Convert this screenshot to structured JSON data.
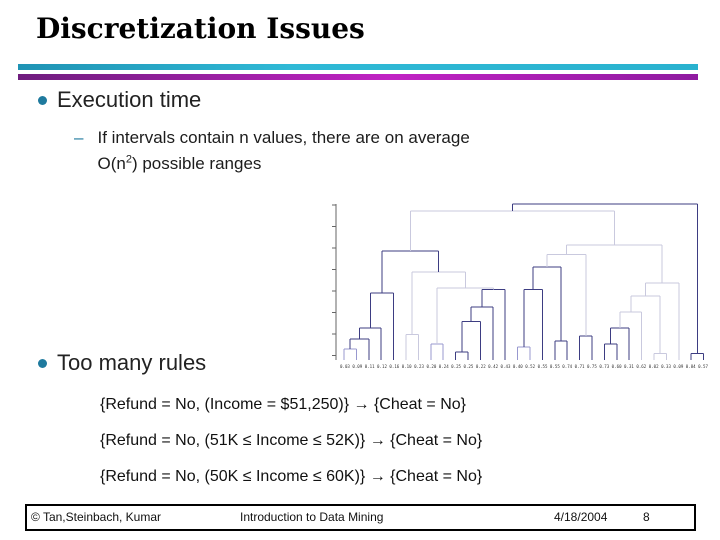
{
  "slide": {
    "title": "Discretization Issues",
    "bullet1": "Execution time",
    "bullet2": "Too many rules",
    "sub_bullet": {
      "dash": "–",
      "line1": "If intervals contain n values, there are on average",
      "line2_prefix": "O(n",
      "line2_sup": "2",
      "line2_suffix": ") possible ranges"
    },
    "rules": [
      "{Refund = No, (Income = $51,250)} → {Cheat = No}",
      "{Refund = No, (51K ≤ Income ≤ 52K)} → {Cheat = No}",
      "{Refund = No, (50K ≤ Income ≤ 60K)} → {Cheat = No}"
    ]
  },
  "footer": {
    "copyright": "© Tan,Steinbach, Kumar",
    "center": "Introduction to Data Mining",
    "date": "4/18/2004",
    "page": "8"
  },
  "colors": {
    "accent_teal": "#29b2cf",
    "accent_magenta": "#b21bb2",
    "bullet_dot": "#1f7a9e",
    "dendro_dark": "#3d3d82",
    "dendro_light": "#c9c9de",
    "dendro_mid": "#9898cf",
    "axis": "#666666"
  },
  "chart_data": {
    "type": "dendrogram",
    "title": "",
    "xlabel": "",
    "ylabel": "",
    "leaf_labels": "0.03 0.09 0.11 0.12 0.16 0.10 0.23 0.20 0.24 0.25 0.25 0.22 0.42 0.43 0.40 0.52 0.55 0.55 0.74 0.71 0.75 0.73 0.60 0.31 0.62 0.02 0.33 0.09 0.84 0.57",
    "colors": {
      "d": "#3d3d82",
      "l": "#c9c9de",
      "m": "#9898cf"
    },
    "tree": {
      "h": 0.975,
      "col": "d",
      "c": [
        {
          "h": 0.93,
          "col": "l",
          "c": [
            {
              "h": 0.68,
              "col": "d",
              "c": [
                {
                  "h": 0.42,
                  "col": "d",
                  "c": [
                    {
                      "h": 0.2,
                      "col": "d",
                      "c": [
                        {
                          "h": 0.13,
                          "col": "d",
                          "c": [
                            {
                              "h": 0.07,
                              "col": "m",
                              "c": [
                                0,
                                1
                              ]
                            },
                            2
                          ]
                        },
                        3
                      ]
                    },
                    4
                  ]
                },
                {
                  "h": 0.55,
                  "col": "l",
                  "c": [
                    {
                      "h": 0.16,
                      "col": "l",
                      "c": [
                        5,
                        6
                      ]
                    },
                    {
                      "h": 0.45,
                      "col": "l",
                      "c": [
                        {
                          "h": 0.1,
                          "col": "m",
                          "c": [
                            7,
                            8
                          ]
                        },
                        {
                          "h": 0.44,
                          "col": "d",
                          "c": [
                            {
                              "h": 0.33,
                              "col": "d",
                              "c": [
                                {
                                  "h": 0.24,
                                  "col": "d",
                                  "c": [
                                    {
                                      "h": 0.05,
                                      "col": "d",
                                      "c": [
                                        9,
                                        10
                                      ]
                                    },
                                    11
                                  ]
                                },
                                12
                              ]
                            },
                            13
                          ]
                        }
                      ]
                    }
                  ]
                }
              ]
            },
            {
              "h": 0.72,
              "col": "l",
              "c": [
                {
                  "h": 0.66,
                  "col": "l",
                  "c": [
                    {
                      "h": 0.58,
                      "col": "d",
                      "c": [
                        {
                          "h": 0.44,
                          "col": "d",
                          "c": [
                            {
                              "h": 0.08,
                              "col": "m",
                              "c": [
                                14,
                                15
                              ]
                            },
                            16
                          ]
                        },
                        {
                          "h": 0.12,
                          "col": "d",
                          "c": [
                            17,
                            18
                          ]
                        }
                      ]
                    },
                    {
                      "h": 0.15,
                      "col": "d",
                      "c": [
                        19,
                        20
                      ]
                    }
                  ]
                },
                {
                  "h": 0.48,
                  "col": "l",
                  "c": [
                    {
                      "h": 0.4,
                      "col": "l",
                      "c": [
                        {
                          "h": 0.3,
                          "col": "l",
                          "c": [
                            {
                              "h": 0.2,
                              "col": "d",
                              "c": [
                                {
                                  "h": 0.1,
                                  "col": "d",
                                  "c": [
                                    21,
                                    22
                                  ]
                                },
                                23
                              ]
                            },
                            24
                          ]
                        },
                        {
                          "h": 0.04,
                          "col": "l",
                          "c": [
                            25,
                            26
                          ]
                        }
                      ]
                    },
                    27
                  ]
                }
              ]
            }
          ]
        },
        {
          "h": 0.04,
          "col": "d",
          "c": [
            28,
            29
          ]
        }
      ]
    }
  }
}
